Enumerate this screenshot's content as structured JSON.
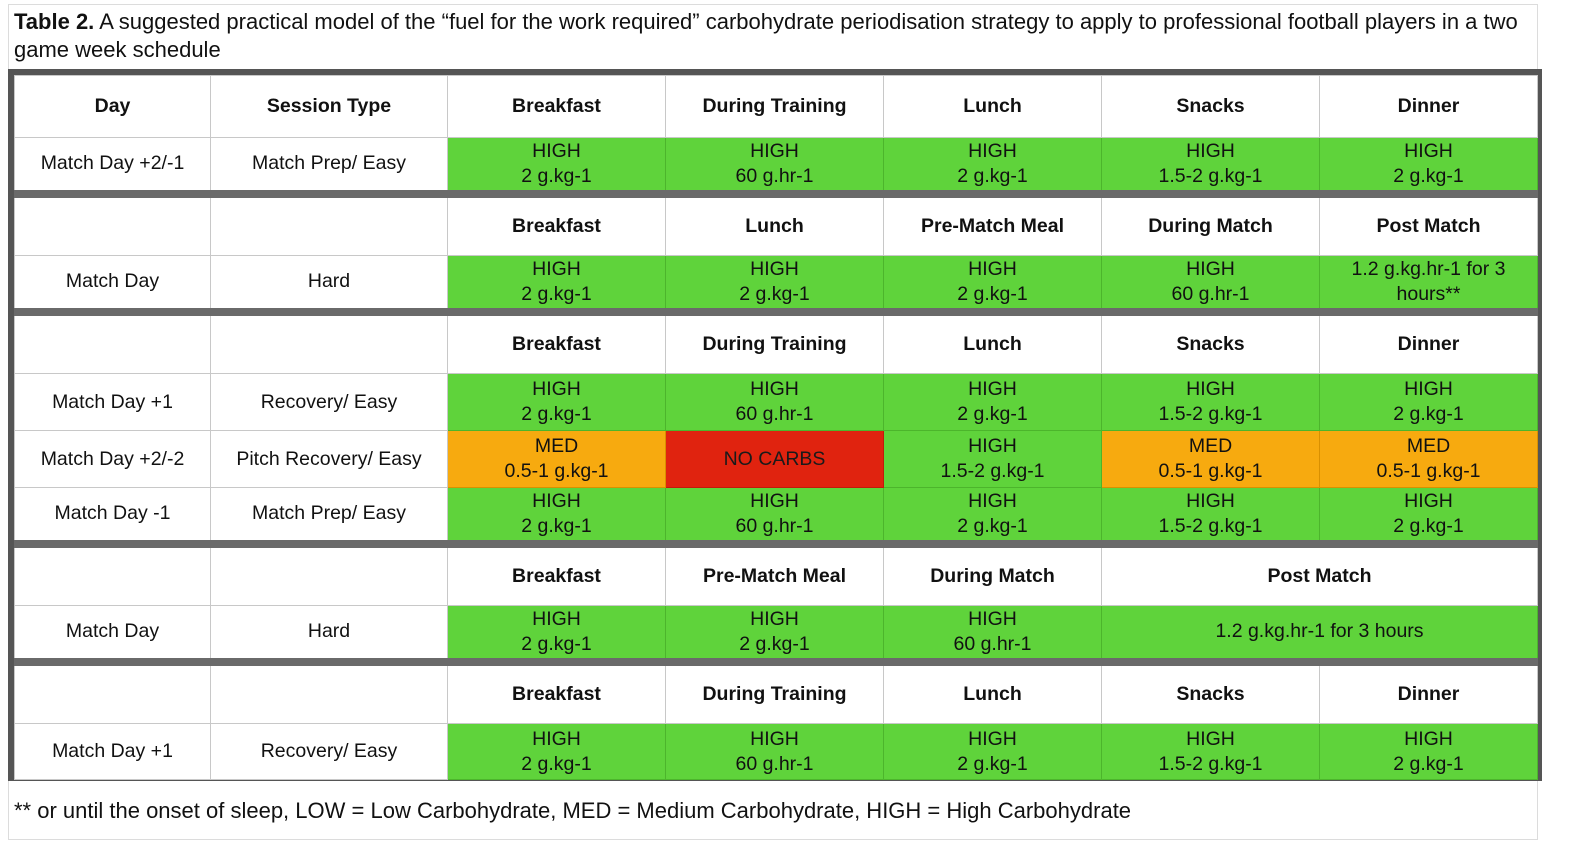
{
  "caption": {
    "label": "Table 2.",
    "text": " A suggested practical model of the “fuel for the work required” carbohydrate periodisation strategy to apply to professional football players in a two game week schedule"
  },
  "colors": {
    "high": "#5fd33b",
    "med": "#f7aa0f",
    "none": "#e0230f",
    "frame": "#555555"
  },
  "table": {
    "header": {
      "day": "Day",
      "session": "Session Type",
      "meals": [
        "Breakfast",
        "During Training",
        "Lunch",
        "Snacks",
        "Dinner"
      ]
    },
    "block1": {
      "day": "Match Day +2/-1",
      "session": "Match Prep/ Easy",
      "cells": [
        {
          "level": "HIGH",
          "amount": "2 g.kg-1"
        },
        {
          "level": "HIGH",
          "amount": "60 g.hr-1"
        },
        {
          "level": "HIGH",
          "amount": "2 g.kg-1"
        },
        {
          "level": "HIGH",
          "amount": "1.5-2 g.kg-1"
        },
        {
          "level": "HIGH",
          "amount": "2 g.kg-1"
        }
      ]
    },
    "block2": {
      "meals": [
        "Breakfast",
        "Lunch",
        "Pre-Match Meal",
        "During Match",
        "Post Match"
      ],
      "day": "Match Day",
      "session": "Hard",
      "cells": [
        {
          "level": "HIGH",
          "amount": "2 g.kg-1"
        },
        {
          "level": "HIGH",
          "amount": "2 g.kg-1"
        },
        {
          "level": "HIGH",
          "amount": "2 g.kg-1"
        },
        {
          "level": "HIGH",
          "amount": "60 g.hr-1"
        },
        {
          "level": "1.2 g.kg.hr-1 for 3",
          "amount": "hours**"
        }
      ]
    },
    "block3": {
      "meals": [
        "Breakfast",
        "During Training",
        "Lunch",
        "Snacks",
        "Dinner"
      ],
      "rows": [
        {
          "day": "Match Day +1",
          "session": "Recovery/ Easy",
          "cells": [
            {
              "level": "HIGH",
              "amount": "2 g.kg-1"
            },
            {
              "level": "HIGH",
              "amount": "60 g.hr-1"
            },
            {
              "level": "HIGH",
              "amount": "2 g.kg-1"
            },
            {
              "level": "HIGH",
              "amount": "1.5-2 g.kg-1"
            },
            {
              "level": "HIGH",
              "amount": "2 g.kg-1"
            }
          ]
        },
        {
          "day": "Match Day +2/-2",
          "session": "Pitch Recovery/ Easy",
          "cells": [
            {
              "level": "MED",
              "amount": "0.5-1 g.kg-1"
            },
            {
              "level": "NO CARBS",
              "amount": ""
            },
            {
              "level": "HIGH",
              "amount": "1.5-2 g.kg-1"
            },
            {
              "level": "MED",
              "amount": "0.5-1 g.kg-1"
            },
            {
              "level": "MED",
              "amount": "0.5-1 g.kg-1"
            }
          ]
        },
        {
          "day": "Match Day -1",
          "session": "Match Prep/ Easy",
          "cells": [
            {
              "level": "HIGH",
              "amount": "2 g.kg-1"
            },
            {
              "level": "HIGH",
              "amount": "60 g.hr-1"
            },
            {
              "level": "HIGH",
              "amount": "2 g.kg-1"
            },
            {
              "level": "HIGH",
              "amount": "1.5-2 g.kg-1"
            },
            {
              "level": "HIGH",
              "amount": "2 g.kg-1"
            }
          ]
        }
      ]
    },
    "block4": {
      "meals": [
        "Breakfast",
        "Pre-Match Meal",
        "During Match",
        "Post Match"
      ],
      "day": "Match Day",
      "session": "Hard",
      "cells": [
        {
          "level": "HIGH",
          "amount": "2 g.kg-1"
        },
        {
          "level": "HIGH",
          "amount": "2 g.kg-1"
        },
        {
          "level": "HIGH",
          "amount": "60 g.hr-1"
        },
        {
          "level": "1.2 g.kg.hr-1 for 3 hours",
          "amount": ""
        }
      ]
    },
    "block5": {
      "meals": [
        "Breakfast",
        "During Training",
        "Lunch",
        "Snacks",
        "Dinner"
      ],
      "day": "Match Day +1",
      "session": "Recovery/ Easy",
      "cells": [
        {
          "level": "HIGH",
          "amount": "2 g.kg-1"
        },
        {
          "level": "HIGH",
          "amount": "60 g.hr-1"
        },
        {
          "level": "HIGH",
          "amount": "2 g.kg-1"
        },
        {
          "level": "HIGH",
          "amount": "1.5-2 g.kg-1"
        },
        {
          "level": "HIGH",
          "amount": "2 g.kg-1"
        }
      ]
    }
  },
  "footnote": "** or until the onset of sleep, LOW = Low Carbohydrate, MED = Medium Carbohydrate, HIGH = High Carbohydrate"
}
